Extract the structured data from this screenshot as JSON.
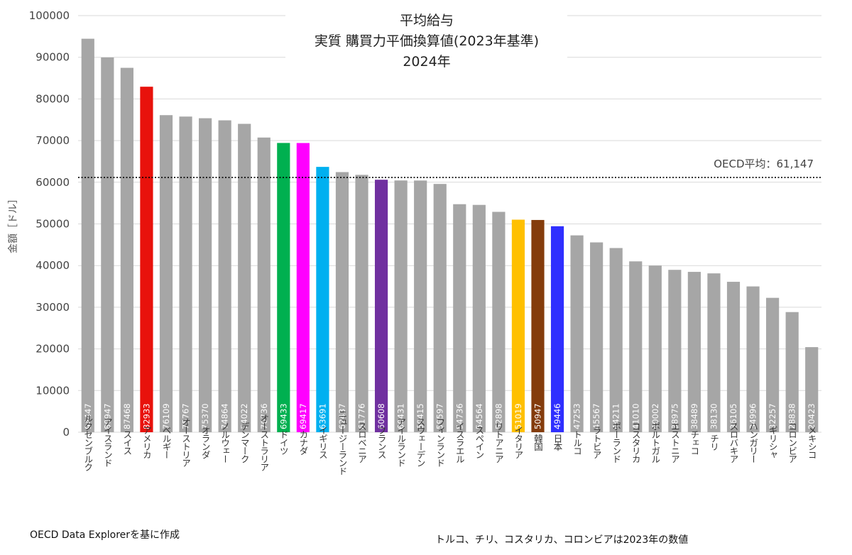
{
  "chart_data": {
    "type": "bar",
    "title": [
      "平均給与",
      "実質 購買力平価換算値(2023年基準)",
      "2024年"
    ],
    "ylabel": "金額［ドル］",
    "ylim": [
      0,
      100000
    ],
    "yticks": [
      0,
      10000,
      20000,
      30000,
      40000,
      50000,
      60000,
      70000,
      80000,
      90000,
      100000
    ],
    "grid": true,
    "categories": [
      "ルクセンブルク",
      "アイスランド",
      "スイス",
      "アメリカ",
      "ベルギー",
      "オーストリア",
      "オランダ",
      "ノルウェー",
      "デンマーク",
      "オーストラリア",
      "ドイツ",
      "カナダ",
      "イギリス",
      "ニュージーランド",
      "スロベニア",
      "フランス",
      "アイルランド",
      "スウェーデン",
      "フィンランド",
      "イスラエル",
      "スペイン",
      "リトアニア",
      "イタリア",
      "韓国",
      "日本",
      "トルコ",
      "ラトビア",
      "ポーランド",
      "コスタリカ",
      "ポルトガル",
      "エストニア",
      "チェコ",
      "チリ",
      "スロバキア",
      "ハンガリー",
      "ギリシャ",
      "コロンビア",
      "メキシコ"
    ],
    "values": [
      94447,
      89947,
      87468,
      82933,
      76109,
      75767,
      75370,
      74864,
      74022,
      70736,
      69433,
      69417,
      63691,
      62437,
      61776,
      60608,
      60431,
      60415,
      59597,
      54736,
      54564,
      52898,
      51019,
      50947,
      49446,
      47253,
      45567,
      44211,
      41010,
      40002,
      38975,
      38489,
      38130,
      36105,
      34996,
      32257,
      28838,
      20423
    ],
    "value_labels": [
      "94447",
      "89947",
      "87468",
      "82933",
      "76109",
      "75767",
      "75370",
      "74864",
      "74022",
      "70736",
      "69433",
      "69417",
      "63691",
      "62437",
      "61776",
      "60608",
      "60431",
      "60415",
      "59597",
      "54736",
      "54564",
      "52898",
      "51019",
      "50947",
      "49446",
      "47253",
      "45567",
      "44211",
      "41010",
      "40002",
      "38975",
      "38489",
      "38130",
      "36105",
      "34996",
      "32257",
      "28838",
      "20423"
    ],
    "colors": [
      "#a6a6a6",
      "#a6a6a6",
      "#a6a6a6",
      "#e8120c",
      "#a6a6a6",
      "#a6a6a6",
      "#a6a6a6",
      "#a6a6a6",
      "#a6a6a6",
      "#a6a6a6",
      "#00b050",
      "#ff00ff",
      "#00b0f0",
      "#a6a6a6",
      "#a6a6a6",
      "#7030a0",
      "#a6a6a6",
      "#a6a6a6",
      "#a6a6a6",
      "#a6a6a6",
      "#a6a6a6",
      "#a6a6a6",
      "#ffc000",
      "#843c0c",
      "#2f2fff",
      "#a6a6a6",
      "#a6a6a6",
      "#a6a6a6",
      "#a6a6a6",
      "#a6a6a6",
      "#a6a6a6",
      "#a6a6a6",
      "#a6a6a6",
      "#a6a6a6",
      "#a6a6a6",
      "#a6a6a6",
      "#a6a6a6",
      "#a6a6a6"
    ],
    "reference_line": {
      "value": 61147,
      "label": "OECD平均：61,147",
      "style": "dotted"
    }
  },
  "notes": {
    "source": "OECD Data Explorerを基に作成",
    "footnote": "トルコ、チリ、コスタリカ、コロンビアは2023年の数値"
  }
}
